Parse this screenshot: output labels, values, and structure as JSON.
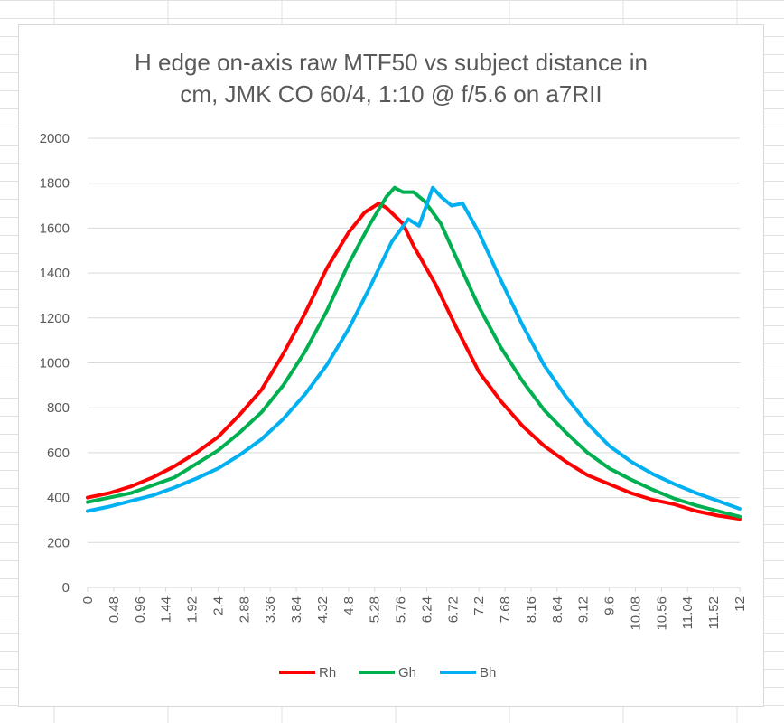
{
  "chart_data": {
    "type": "line",
    "title_lines": [
      "H edge on-axis raw MTF50 vs subject distance in",
      "cm, JMK CO 60/4, 1:10 @ f/5.6 on a7RII"
    ],
    "xlabel": "",
    "ylabel": "",
    "ylim": [
      0,
      2000
    ],
    "yticks": [
      0,
      200,
      400,
      600,
      800,
      1000,
      1200,
      1400,
      1600,
      1800,
      2000
    ],
    "xlim": [
      0,
      12
    ],
    "xticks": [
      "0",
      "0.48",
      "0.96",
      "1.44",
      "1.92",
      "2.4",
      "2.88",
      "3.36",
      "3.84",
      "4.32",
      "4.8",
      "5.28",
      "5.76",
      "6.24",
      "6.72",
      "7.2",
      "7.68",
      "8.16",
      "8.64",
      "9.12",
      "9.6",
      "10.08",
      "10.56",
      "11.04",
      "11.52",
      "12"
    ],
    "grid": true,
    "legend": "bottom",
    "series": [
      {
        "name": "Rh",
        "color": "#ff0000",
        "points": [
          [
            0,
            400
          ],
          [
            0.4,
            420
          ],
          [
            0.8,
            450
          ],
          [
            1.2,
            490
          ],
          [
            1.6,
            540
          ],
          [
            2.0,
            600
          ],
          [
            2.4,
            670
          ],
          [
            2.8,
            770
          ],
          [
            3.2,
            880
          ],
          [
            3.6,
            1040
          ],
          [
            4.0,
            1220
          ],
          [
            4.4,
            1420
          ],
          [
            4.8,
            1580
          ],
          [
            5.1,
            1670
          ],
          [
            5.36,
            1710
          ],
          [
            5.5,
            1690
          ],
          [
            5.8,
            1620
          ],
          [
            6.0,
            1520
          ],
          [
            6.4,
            1350
          ],
          [
            6.8,
            1150
          ],
          [
            7.2,
            960
          ],
          [
            7.6,
            830
          ],
          [
            8.0,
            720
          ],
          [
            8.4,
            630
          ],
          [
            8.8,
            560
          ],
          [
            9.2,
            500
          ],
          [
            9.6,
            460
          ],
          [
            10.0,
            420
          ],
          [
            10.4,
            390
          ],
          [
            10.8,
            370
          ],
          [
            11.2,
            340
          ],
          [
            11.6,
            320
          ],
          [
            12,
            305
          ]
        ]
      },
      {
        "name": "Gh",
        "color": "#00b050",
        "points": [
          [
            0,
            380
          ],
          [
            0.4,
            400
          ],
          [
            0.8,
            420
          ],
          [
            1.2,
            455
          ],
          [
            1.6,
            490
          ],
          [
            2.0,
            550
          ],
          [
            2.4,
            610
          ],
          [
            2.8,
            690
          ],
          [
            3.2,
            780
          ],
          [
            3.6,
            900
          ],
          [
            4.0,
            1050
          ],
          [
            4.4,
            1230
          ],
          [
            4.8,
            1440
          ],
          [
            5.2,
            1620
          ],
          [
            5.5,
            1740
          ],
          [
            5.65,
            1780
          ],
          [
            5.8,
            1760
          ],
          [
            6.0,
            1760
          ],
          [
            6.2,
            1720
          ],
          [
            6.5,
            1620
          ],
          [
            6.8,
            1460
          ],
          [
            7.2,
            1250
          ],
          [
            7.6,
            1070
          ],
          [
            8.0,
            920
          ],
          [
            8.4,
            790
          ],
          [
            8.8,
            690
          ],
          [
            9.2,
            600
          ],
          [
            9.6,
            530
          ],
          [
            10.0,
            480
          ],
          [
            10.4,
            435
          ],
          [
            10.8,
            395
          ],
          [
            11.2,
            365
          ],
          [
            11.6,
            340
          ],
          [
            12,
            315
          ]
        ]
      },
      {
        "name": "Bh",
        "color": "#00b0f0",
        "points": [
          [
            0,
            340
          ],
          [
            0.4,
            360
          ],
          [
            0.8,
            385
          ],
          [
            1.2,
            410
          ],
          [
            1.6,
            445
          ],
          [
            2.0,
            485
          ],
          [
            2.4,
            530
          ],
          [
            2.8,
            590
          ],
          [
            3.2,
            660
          ],
          [
            3.6,
            750
          ],
          [
            4.0,
            860
          ],
          [
            4.4,
            990
          ],
          [
            4.8,
            1150
          ],
          [
            5.2,
            1340
          ],
          [
            5.6,
            1540
          ],
          [
            5.9,
            1640
          ],
          [
            6.1,
            1610
          ],
          [
            6.35,
            1780
          ],
          [
            6.5,
            1740
          ],
          [
            6.7,
            1700
          ],
          [
            6.9,
            1710
          ],
          [
            7.2,
            1580
          ],
          [
            7.6,
            1370
          ],
          [
            8.0,
            1170
          ],
          [
            8.4,
            990
          ],
          [
            8.8,
            850
          ],
          [
            9.2,
            730
          ],
          [
            9.6,
            630
          ],
          [
            10.0,
            560
          ],
          [
            10.4,
            505
          ],
          [
            10.8,
            460
          ],
          [
            11.2,
            420
          ],
          [
            11.6,
            385
          ],
          [
            12,
            350
          ]
        ]
      }
    ]
  }
}
